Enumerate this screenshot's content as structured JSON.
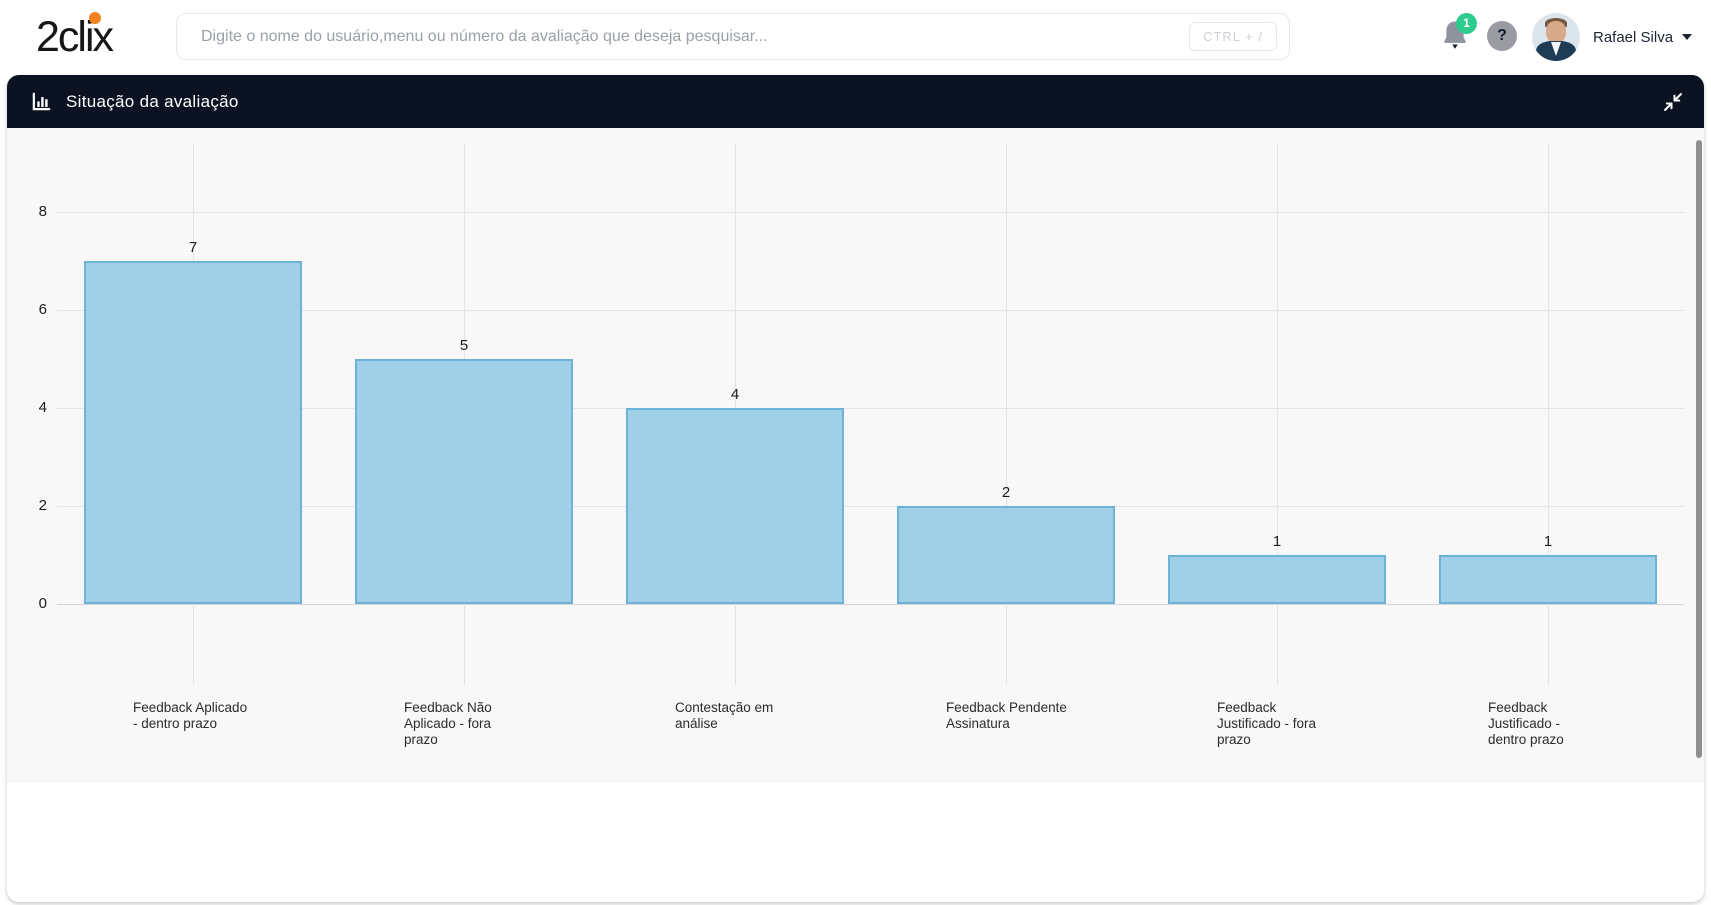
{
  "header": {
    "logo_text": "2clix",
    "search": {
      "placeholder": "Digite o nome do usuário,menu ou número da avaliação que deseja pesquisar...",
      "shortcut_hint": "CTRL + /"
    },
    "notifications": {
      "badge_count": "1"
    },
    "help_label": "?",
    "user": {
      "name": "Rafael Silva"
    }
  },
  "panel": {
    "title": "Situação da avaliação"
  },
  "colors": {
    "accent_orange": "#f58220",
    "badge_green": "#2ecb8e",
    "panel_header_bg": "#0b1322",
    "chart_bg": "#f8f8f9",
    "bar_fill": "#a0d0e8",
    "bar_border": "#6db3d8"
  },
  "chart_data": {
    "type": "bar",
    "title": "Situação da avaliação",
    "categories": [
      "Feedback Aplicado - dentro prazo",
      "Feedback Não Aplicado - fora prazo",
      "Contestação em análise",
      "Feedback Pendente Assinatura",
      "Feedback Justificado - fora prazo",
      "Feedback Justificado - dentro prazo"
    ],
    "category_label_lines": [
      [
        "Feedback Aplicado",
        "- dentro prazo"
      ],
      [
        "Feedback Não",
        "Aplicado - fora",
        "prazo"
      ],
      [
        "Contestação em",
        "análise"
      ],
      [
        "Feedback Pendente",
        "Assinatura"
      ],
      [
        "Feedback",
        "Justificado - fora",
        "prazo"
      ],
      [
        "Feedback",
        "Justificado -",
        "dentro prazo"
      ]
    ],
    "values": [
      7,
      5,
      4,
      2,
      1,
      1
    ],
    "xlabel": "",
    "ylabel": "",
    "ylim": [
      0,
      8
    ],
    "yticks": [
      0,
      2,
      4,
      6,
      8
    ],
    "grid": true,
    "legend": false,
    "value_labels": true
  }
}
